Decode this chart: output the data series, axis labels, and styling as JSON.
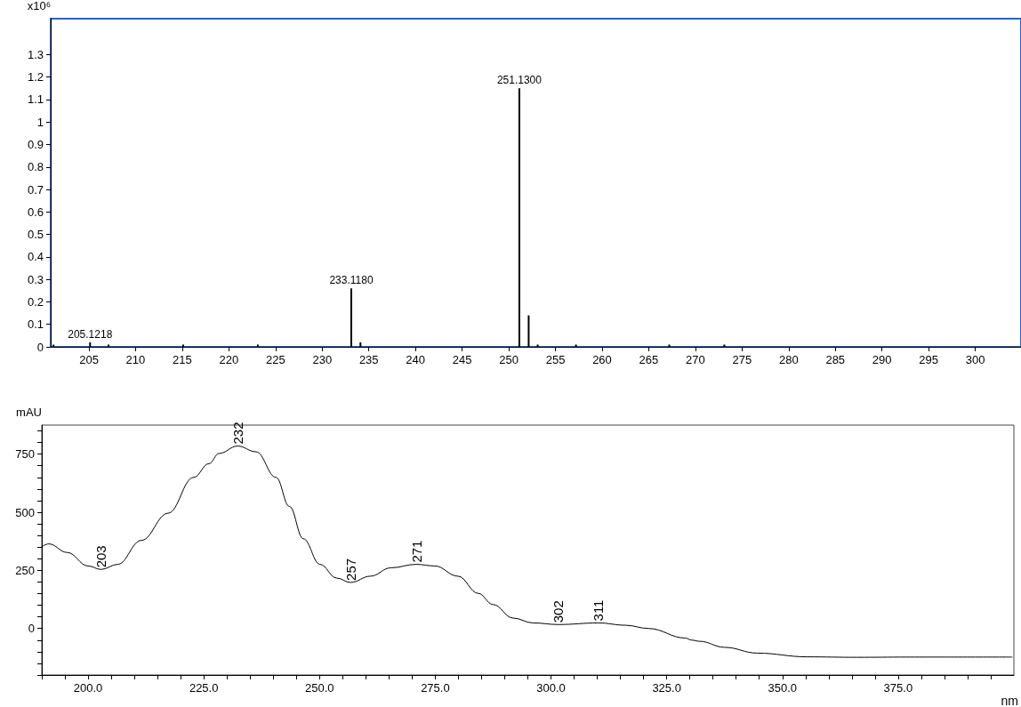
{
  "chart_data": [
    {
      "type": "bar",
      "ylabel": "x10⁶",
      "x": [
        201.2,
        205.1218,
        207.1,
        215.1,
        223.1,
        233.118,
        234.1,
        251.13,
        252.13,
        253.1,
        257.2,
        267.2,
        273.1
      ],
      "values": [
        0.01,
        0.02,
        0.01,
        0.01,
        0.01,
        0.26,
        0.02,
        1.15,
        0.14,
        0.01,
        0.01,
        0.01,
        0.01
      ],
      "color": "#000000",
      "xlim": [
        200.9,
        304.9
      ],
      "ylim": [
        0,
        1.46
      ],
      "xticks": [
        205,
        210,
        215,
        220,
        225,
        230,
        235,
        240,
        245,
        250,
        255,
        260,
        265,
        270,
        275,
        280,
        285,
        290,
        295,
        300
      ],
      "yticks": [
        0,
        0.1,
        0.2,
        0.3,
        0.4,
        0.5,
        0.6,
        0.7,
        0.8,
        0.9,
        1,
        1.1,
        1.2,
        1.3
      ],
      "annotations": [
        {
          "text": "205.1218",
          "x": 205.1218,
          "y": 0.02
        },
        {
          "text": "233.1180",
          "x": 233.118,
          "y": 0.26
        },
        {
          "text": "251.1300",
          "x": 251.13,
          "y": 1.15
        }
      ],
      "grid": false
    },
    {
      "type": "line",
      "ylabel": "mAU",
      "xlabel": "nm",
      "x": [
        190,
        191.5,
        195.5,
        200,
        202.8,
        206.4,
        211.5,
        217.3,
        222.8,
        226.1,
        228.3,
        232.3,
        236.3,
        240.6,
        243.5,
        246.5,
        250.1,
        253.7,
        256.7,
        261,
        265.4,
        270.9,
        274.9,
        279.9,
        284.3,
        287.5,
        291.8,
        296.1,
        301.6,
        310.2,
        316.1,
        321.1,
        329,
        330.4,
        332.1,
        337.5,
        344.6,
        355.4,
        366.1,
        376.8,
        399.6
      ],
      "values": [
        352,
        364,
        327,
        269,
        254,
        276,
        379,
        496,
        650,
        709,
        753,
        785,
        760,
        650,
        525,
        386,
        276,
        217,
        198,
        225,
        261,
        276,
        269,
        225,
        151,
        103,
        45,
        24,
        17,
        24,
        14,
        0,
        -41,
        -50,
        -55,
        -81,
        -106,
        -122,
        -124,
        -123,
        -123
      ],
      "color": "#000000",
      "marker": "none",
      "line_style": "solid",
      "xlim": [
        190,
        400
      ],
      "ylim": [
        -200,
        875
      ],
      "xticks": [
        {
          "value": 190,
          "label": null
        },
        {
          "value": 195,
          "label": null
        },
        {
          "value": 200,
          "label": "200.0"
        },
        {
          "value": 205,
          "label": null
        },
        {
          "value": 210,
          "label": null
        },
        {
          "value": 215,
          "label": null
        },
        {
          "value": 220,
          "label": null
        },
        {
          "value": 225,
          "label": "225.0"
        },
        {
          "value": 230,
          "label": null
        },
        {
          "value": 235,
          "label": null
        },
        {
          "value": 240,
          "label": null
        },
        {
          "value": 245,
          "label": null
        },
        {
          "value": 250,
          "label": "250.0"
        },
        {
          "value": 255,
          "label": null
        },
        {
          "value": 260,
          "label": null
        },
        {
          "value": 265,
          "label": null
        },
        {
          "value": 270,
          "label": null
        },
        {
          "value": 275,
          "label": "275.0"
        },
        {
          "value": 280,
          "label": null
        },
        {
          "value": 285,
          "label": null
        },
        {
          "value": 290,
          "label": null
        },
        {
          "value": 295,
          "label": null
        },
        {
          "value": 300,
          "label": "300.0"
        },
        {
          "value": 305,
          "label": null
        },
        {
          "value": 310,
          "label": null
        },
        {
          "value": 315,
          "label": null
        },
        {
          "value": 320,
          "label": null
        },
        {
          "value": 325,
          "label": "325.0"
        },
        {
          "value": 330,
          "label": null
        },
        {
          "value": 335,
          "label": null
        },
        {
          "value": 340,
          "label": null
        },
        {
          "value": 345,
          "label": null
        },
        {
          "value": 350,
          "label": "350.0"
        },
        {
          "value": 355,
          "label": null
        },
        {
          "value": 360,
          "label": null
        },
        {
          "value": 365,
          "label": null
        },
        {
          "value": 370,
          "label": null
        },
        {
          "value": 375,
          "label": "375.0"
        },
        {
          "value": 380,
          "label": null
        },
        {
          "value": 385,
          "label": null
        },
        {
          "value": 390,
          "label": null
        },
        {
          "value": 395,
          "label": null
        }
      ],
      "yticks": [
        {
          "value": -200,
          "label": null
        },
        {
          "value": -150,
          "label": null
        },
        {
          "value": -100,
          "label": null
        },
        {
          "value": -50,
          "label": null
        },
        0,
        {
          "value": 50,
          "label": null
        },
        {
          "value": 100,
          "label": null
        },
        {
          "value": 150,
          "label": null
        },
        {
          "value": 200,
          "label": null
        },
        250,
        {
          "value": 300,
          "label": null
        },
        {
          "value": 350,
          "label": null
        },
        {
          "value": 400,
          "label": null
        },
        {
          "value": 450,
          "label": null
        },
        500,
        {
          "value": 550,
          "label": null
        },
        {
          "value": 600,
          "label": null
        },
        {
          "value": 650,
          "label": null
        },
        {
          "value": 700,
          "label": null
        },
        750,
        {
          "value": 800,
          "label": null
        },
        {
          "value": 850,
          "label": null
        }
      ],
      "annotations": [
        {
          "text": "203",
          "x": 202.8,
          "y": 254
        },
        {
          "text": "232",
          "x": 232.3,
          "y": 785
        },
        {
          "text": "257",
          "x": 256.7,
          "y": 198
        },
        {
          "text": "271",
          "x": 270.9,
          "y": 276
        },
        {
          "text": "302",
          "x": 301.6,
          "y": 17
        },
        {
          "text": "311",
          "x": 310.2,
          "y": 24
        }
      ],
      "grid": false
    }
  ]
}
